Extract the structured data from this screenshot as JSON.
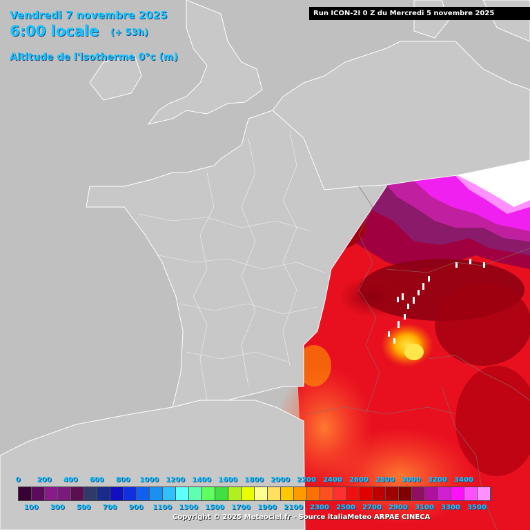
{
  "header": {
    "date": "Vendredi 7 novembre 2025",
    "time": "6:00 locale",
    "lead": "(+ 53h)",
    "parameter": "Altitude de l'isotherme 0°c (m)",
    "run": "Run ICON-2I 0 Z du Mercredi 5 novembre 2025"
  },
  "legend": {
    "top_labels": [
      "0",
      "200",
      "400",
      "600",
      "800",
      "1000",
      "1200",
      "1400",
      "1600",
      "1800",
      "2000",
      "2200",
      "2400",
      "2600",
      "2800",
      "3000",
      "3200",
      "3400"
    ],
    "bottom_labels": [
      "100",
      "300",
      "500",
      "700",
      "900",
      "1100",
      "1300",
      "1500",
      "1700",
      "1900",
      "2100",
      "2300",
      "2500",
      "2700",
      "2900",
      "3100",
      "3300",
      "3500"
    ],
    "colors": [
      "#3a0035",
      "#5c0a5c",
      "#8a1a8a",
      "#7a1a7a",
      "#5a1050",
      "#303a6a",
      "#1a2a8a",
      "#1010c0",
      "#1030e0",
      "#1060f0",
      "#1a90f0",
      "#30c0ff",
      "#60ffff",
      "#60ffb0",
      "#60ff60",
      "#40e040",
      "#b0f020",
      "#e8ff00",
      "#ffff90",
      "#ffe060",
      "#ffc800",
      "#ff9a00",
      "#ff7000",
      "#ff5020",
      "#ff3030",
      "#f01010",
      "#e00000",
      "#c00000",
      "#a00000",
      "#800000",
      "#901060",
      "#b010a0",
      "#d020d0",
      "#ff10ff",
      "#ff50ff",
      "#ff90ff"
    ]
  },
  "copyright": "Copyright © 2025 Meteociel.fr - Source italiaMeteo ARPAE CINECA"
}
